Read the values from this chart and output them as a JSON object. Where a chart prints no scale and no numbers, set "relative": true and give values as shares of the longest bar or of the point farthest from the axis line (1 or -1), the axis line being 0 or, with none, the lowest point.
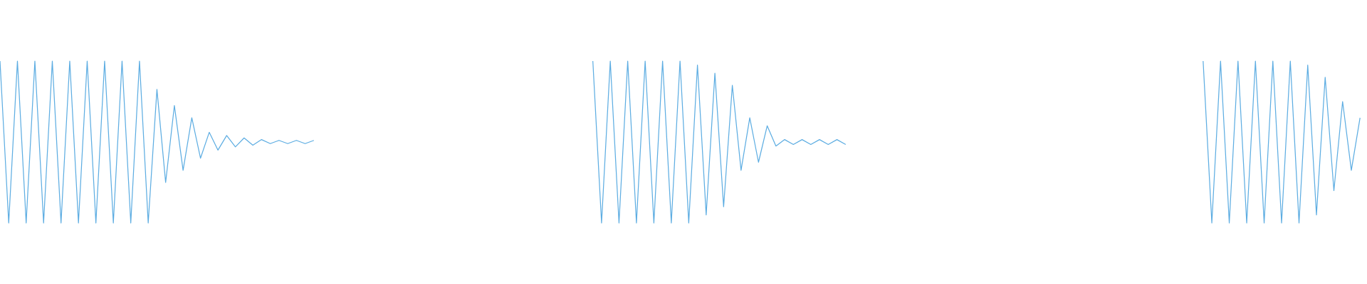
{
  "chart_data": {
    "type": "line",
    "relative": true,
    "categories": [
      null,
      null,
      null,
      null,
      null,
      null,
      null,
      null,
      null,
      null,
      null,
      null,
      null,
      null,
      null,
      null,
      null,
      null,
      null,
      null,
      null,
      null,
      null,
      null,
      null,
      null,
      null,
      null,
      null,
      null,
      null,
      null,
      null,
      null,
      null,
      null,
      null,
      null,
      null,
      null,
      null,
      null,
      null,
      null,
      null,
      null,
      null,
      null,
      null,
      null,
      null,
      null,
      null,
      null,
      null,
      null,
      null,
      null,
      null,
      null,
      null,
      null,
      null,
      null,
      null,
      null,
      null,
      null,
      null,
      null,
      null,
      null,
      null,
      null,
      null,
      null,
      null,
      null,
      null,
      null,
      null,
      null,
      null,
      null,
      null,
      null,
      null,
      null,
      null,
      null,
      null,
      null,
      null,
      null,
      null,
      null,
      null,
      null,
      null,
      null,
      null,
      null,
      null,
      null,
      null,
      null,
      null,
      null,
      null,
      null,
      null,
      null,
      null,
      null,
      null,
      null,
      null,
      null,
      null,
      null,
      null,
      null,
      null,
      null,
      null,
      null,
      null,
      null,
      null,
      null,
      null,
      null,
      null,
      null,
      null,
      null,
      null,
      null,
      null,
      null,
      null,
      null,
      null,
      null,
      null,
      null,
      null,
      null,
      null,
      null,
      null,
      null,
      null,
      null,
      null,
      null,
      null
    ],
    "series": [
      {
        "color": "#5dade2",
        "values": [
          1,
          0,
          1,
          0,
          1,
          0,
          1,
          0,
          1,
          0,
          1,
          0,
          1,
          0,
          1,
          0,
          1,
          0,
          0.825,
          0.25,
          0.725,
          0.325,
          0.65,
          0.4,
          0.56,
          0.45,
          0.54,
          0.47,
          0.525,
          0.48,
          0.515,
          0.49,
          0.51,
          0.49,
          0.51,
          0.49,
          0.51,
          null,
          null,
          null,
          null,
          null,
          null,
          null,
          null,
          null,
          null,
          null,
          null,
          null,
          null,
          null,
          null,
          null,
          null,
          null,
          null,
          null,
          null,
          null,
          null,
          null,
          null,
          null,
          null,
          null,
          null,
          null,
          null,
          null,
          null,
          null,
          null,
          null,
          null,
          null,
          null,
          null,
          null,
          null,
          null,
          null,
          null,
          null,
          null,
          null,
          null,
          null,
          null,
          null,
          null,
          null,
          null,
          null,
          null,
          null,
          null,
          null,
          null,
          null,
          null,
          null,
          null,
          null,
          null,
          null,
          null,
          null,
          null,
          null,
          null,
          null,
          null,
          null,
          null,
          null,
          null,
          null,
          null,
          null,
          null,
          null,
          null,
          null,
          null,
          null,
          null,
          null,
          null,
          null,
          null,
          null,
          null,
          null,
          null,
          null,
          null,
          null,
          null,
          null,
          null,
          null,
          null,
          null,
          null,
          null,
          null,
          null,
          null,
          null,
          null,
          null,
          null,
          null,
          null,
          null,
          null
        ]
      },
      {
        "color": "#5dade2",
        "values": [
          null,
          null,
          null,
          null,
          null,
          null,
          null,
          null,
          null,
          null,
          null,
          null,
          null,
          null,
          null,
          null,
          null,
          null,
          null,
          null,
          null,
          null,
          null,
          null,
          null,
          null,
          null,
          null,
          null,
          null,
          null,
          null,
          null,
          null,
          null,
          null,
          null,
          null,
          null,
          null,
          null,
          null,
          null,
          null,
          null,
          null,
          null,
          null,
          null,
          null,
          null,
          null,
          null,
          null,
          null,
          null,
          null,
          null,
          null,
          null,
          null,
          null,
          null,
          null,
          null,
          null,
          null,
          null,
          1,
          0,
          1,
          0,
          1,
          0,
          1,
          0,
          1,
          0,
          1,
          0,
          0.975,
          0.05,
          0.925,
          0.1,
          0.85,
          0.325,
          0.65,
          0.375,
          0.6,
          0.475,
          0.515,
          0.485,
          0.515,
          0.485,
          0.515,
          0.485,
          0.515,
          0.485,
          null,
          null,
          null,
          null,
          null,
          null,
          null,
          null,
          null,
          null,
          null,
          null,
          null,
          null,
          null,
          null,
          null,
          null,
          null,
          null,
          null,
          null,
          null,
          null,
          null,
          null,
          null,
          null,
          null,
          null,
          null,
          null,
          null,
          null,
          null,
          null,
          null,
          null,
          null,
          null,
          null,
          null,
          null,
          null,
          null,
          null,
          null,
          null,
          null,
          null,
          null,
          null,
          null,
          null,
          null,
          null,
          null,
          null,
          null
        ]
      },
      {
        "color": "#5dade2",
        "values": [
          null,
          null,
          null,
          null,
          null,
          null,
          null,
          null,
          null,
          null,
          null,
          null,
          null,
          null,
          null,
          null,
          null,
          null,
          null,
          null,
          null,
          null,
          null,
          null,
          null,
          null,
          null,
          null,
          null,
          null,
          null,
          null,
          null,
          null,
          null,
          null,
          null,
          null,
          null,
          null,
          null,
          null,
          null,
          null,
          null,
          null,
          null,
          null,
          null,
          null,
          null,
          null,
          null,
          null,
          null,
          null,
          null,
          null,
          null,
          null,
          null,
          null,
          null,
          null,
          null,
          null,
          null,
          null,
          null,
          null,
          null,
          null,
          null,
          null,
          null,
          null,
          null,
          null,
          null,
          null,
          null,
          null,
          null,
          null,
          null,
          null,
          null,
          null,
          null,
          null,
          null,
          null,
          null,
          null,
          null,
          null,
          null,
          null,
          null,
          null,
          null,
          null,
          null,
          null,
          null,
          null,
          null,
          null,
          null,
          null,
          null,
          null,
          null,
          null,
          null,
          null,
          null,
          null,
          null,
          null,
          null,
          null,
          null,
          null,
          null,
          null,
          null,
          null,
          null,
          null,
          null,
          null,
          null,
          null,
          null,
          null,
          null,
          null,
          1,
          0,
          1,
          0,
          1,
          0,
          1,
          0,
          1,
          0,
          1,
          0,
          0.975,
          0.05,
          0.9,
          0.2,
          0.75,
          0.325,
          0.65
        ]
      }
    ]
  }
}
